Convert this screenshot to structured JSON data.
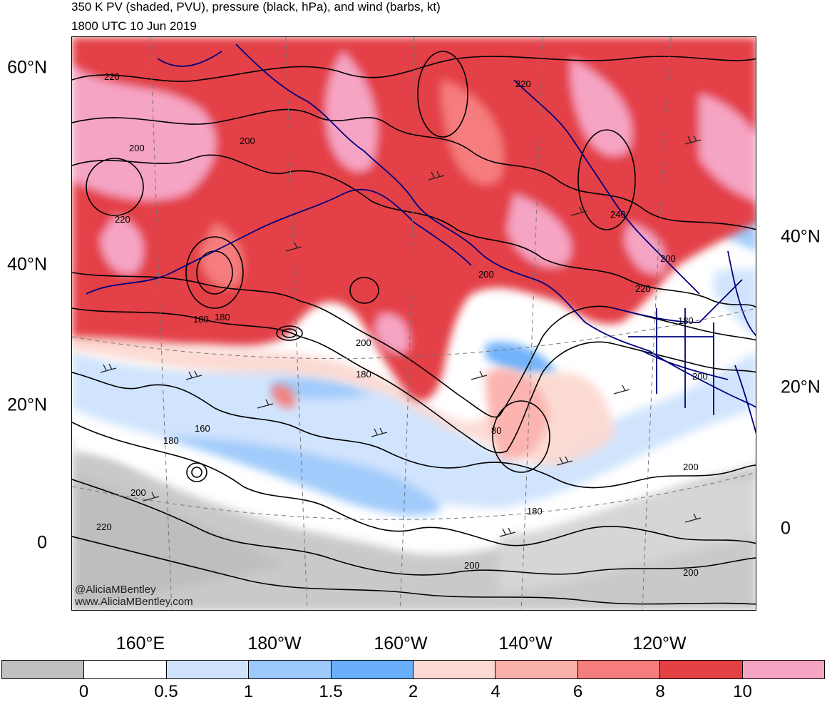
{
  "title": {
    "line1": "350 K PV (shaded, PVU), pressure (black, hPa), and wind (barbs, kt)",
    "line2": "1800 UTC 10 Jun 2019"
  },
  "credits": {
    "twitter": "@AliciaMBentley",
    "website": "www.AliciaMBentley.com"
  },
  "lat_labels_left": [
    "60°N",
    "40°N",
    "20°N",
    "0"
  ],
  "lat_labels_right": [
    "40°N",
    "20°N",
    "0"
  ],
  "lon_labels": [
    "160°E",
    "180°W",
    "160°W",
    "140°W",
    "120°W"
  ],
  "colorbar": {
    "colors": [
      "#c0c0c0",
      "#ffffff",
      "#cfe3fd",
      "#9dc9fb",
      "#6aaffb",
      "#fcd9d2",
      "#fbb1ab",
      "#f67d7d",
      "#e34146",
      "#f6a4c4"
    ],
    "tick_labels": [
      "0",
      "0.5",
      "1",
      "1.5",
      "2",
      "4",
      "6",
      "8",
      "10"
    ]
  },
  "contour_labels": [
    "220",
    "200",
    "200",
    "220",
    "240",
    "200",
    "220",
    "180",
    "200",
    "180",
    "200",
    "160",
    "180",
    "200",
    "220",
    "180",
    "80",
    "200",
    "180",
    "200",
    "200",
    "200",
    "220",
    "180"
  ]
}
